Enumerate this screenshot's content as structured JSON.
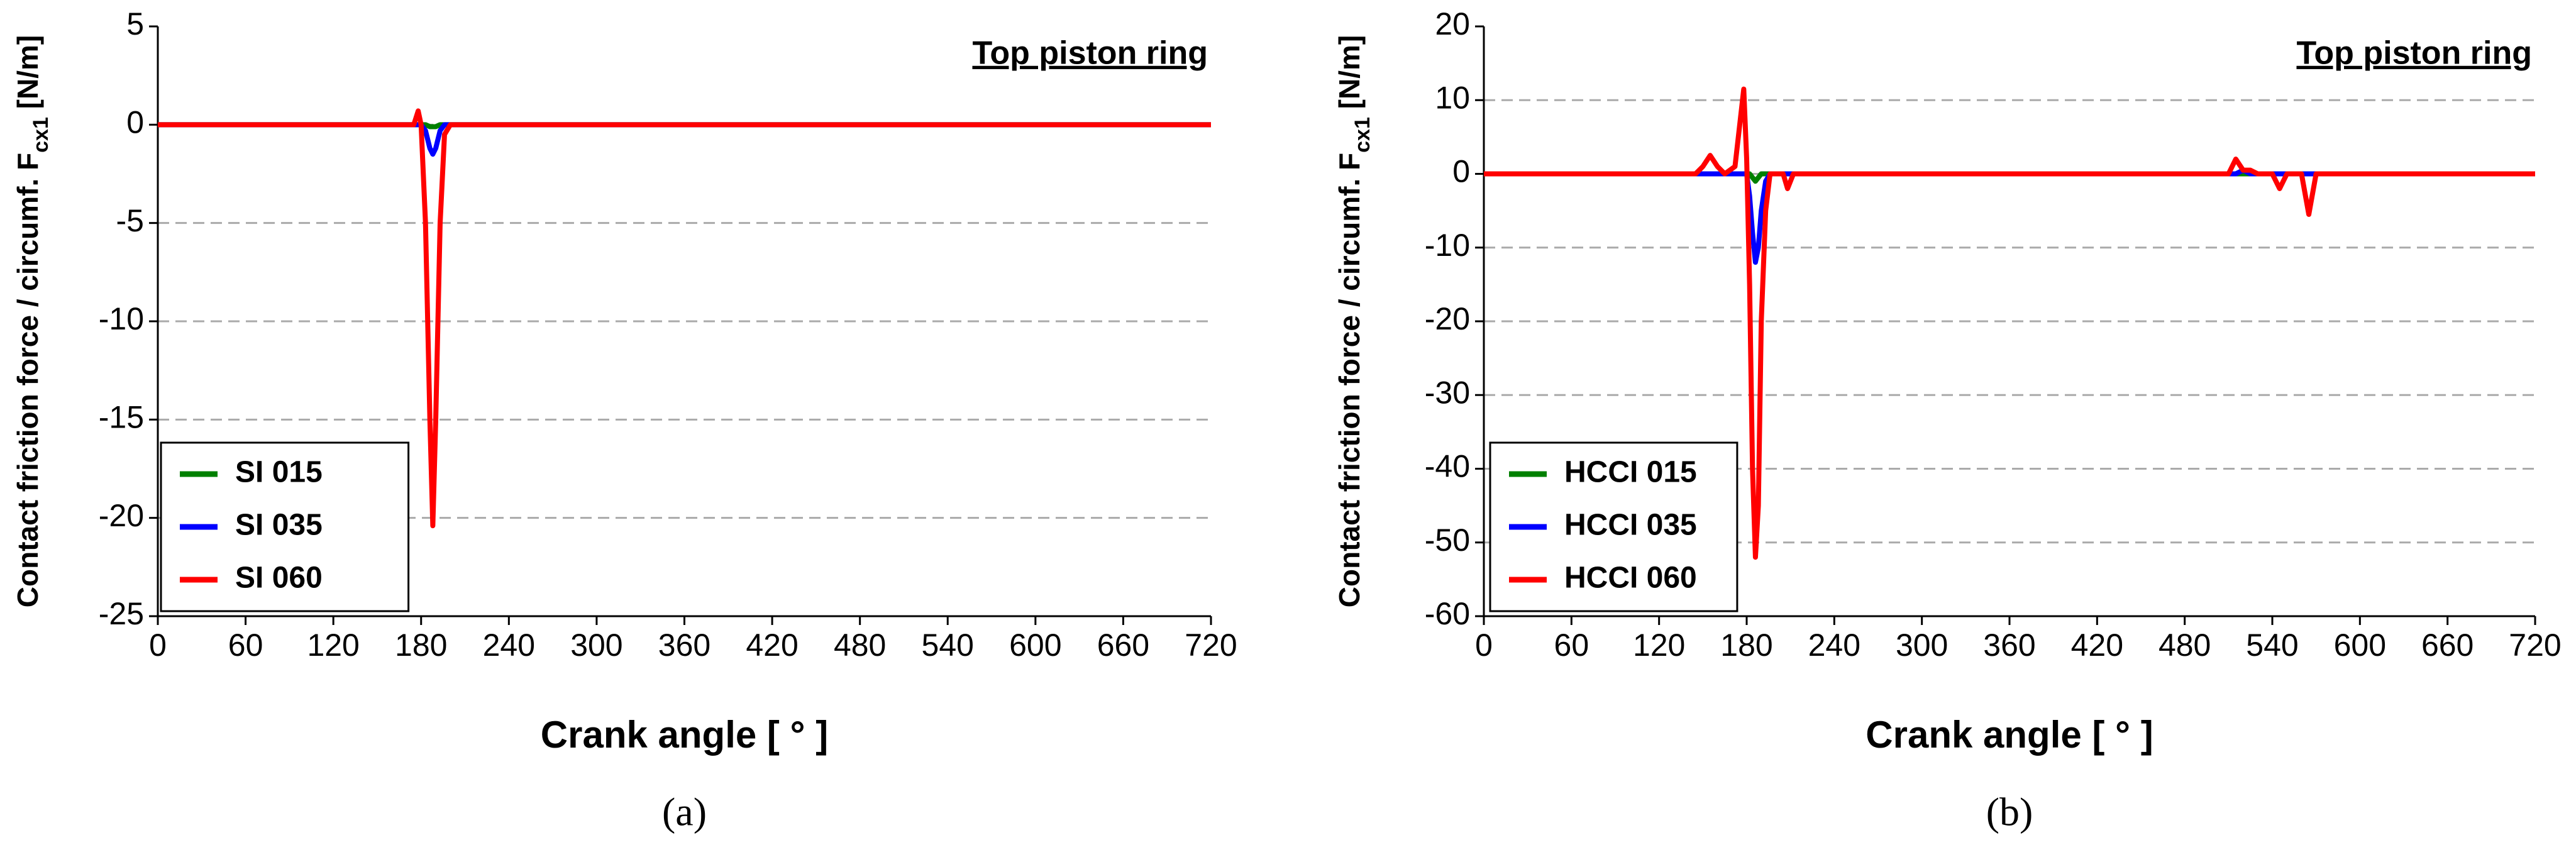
{
  "chart_data": [
    {
      "type": "line",
      "annotation": "Top piston ring",
      "panel_label": "(a)",
      "xlabel": "Crank angle [ ° ]",
      "ylabel": [
        "Contact friction force / circumf. F",
        "cx1",
        " [N/m]"
      ],
      "x": [
        0,
        170,
        175,
        178,
        180,
        183,
        186,
        188,
        190,
        193,
        196,
        200,
        720
      ],
      "series": [
        {
          "name": "SI 015",
          "color": "#008000",
          "values": [
            0,
            0,
            0,
            0,
            0,
            0,
            -0.1,
            -0.1,
            -0.1,
            0,
            0,
            0,
            0
          ]
        },
        {
          "name": "SI 035",
          "color": "#0000ff",
          "values": [
            0,
            0,
            0,
            0,
            0,
            -0.3,
            -1.2,
            -1.5,
            -1.2,
            -0.3,
            0,
            0,
            0
          ]
        },
        {
          "name": "SI 060",
          "color": "#ff0000",
          "values": [
            0,
            0,
            0,
            0.7,
            0,
            -5,
            -15,
            -20.4,
            -15,
            -5,
            -0.5,
            0,
            0
          ]
        }
      ],
      "xlim": [
        0,
        720
      ],
      "xticks": [
        0,
        60,
        120,
        180,
        240,
        300,
        360,
        420,
        480,
        540,
        600,
        660,
        720
      ],
      "ylim": [
        -25,
        5
      ],
      "yticks": [
        5,
        0,
        -5,
        -10,
        -15,
        -20,
        -25
      ],
      "grid": true,
      "legend": "lower left"
    },
    {
      "type": "line",
      "annotation": "Top piston ring",
      "panel_label": "(b)",
      "xlabel": "Crank angle [ ° ]",
      "ylabel": [
        "Contact friction force / circumf. F",
        "cx1",
        " [N/m]"
      ],
      "x": [
        0,
        145,
        150,
        155,
        160,
        165,
        172,
        176,
        178,
        180,
        182,
        184,
        186,
        188,
        190,
        193,
        196,
        200,
        205,
        208,
        212,
        500,
        510,
        515,
        520,
        525,
        530,
        540,
        545,
        550,
        560,
        565,
        570,
        720
      ],
      "series": [
        {
          "name": "HCCI 015",
          "color": "#008000",
          "values": [
            0,
            0,
            0,
            0,
            0,
            0,
            0,
            0,
            0,
            0,
            0,
            -0.5,
            -1,
            -0.5,
            0,
            0,
            0,
            0,
            0,
            0,
            0,
            0,
            0,
            0,
            0,
            0,
            0,
            0,
            0,
            0,
            0,
            0,
            0,
            0
          ]
        },
        {
          "name": "HCCI 035",
          "color": "#0000ff",
          "values": [
            0,
            0,
            0,
            0,
            0,
            0,
            0,
            0,
            0,
            0,
            -3,
            -8,
            -12,
            -10,
            -5,
            -1,
            0,
            0,
            0,
            0,
            0,
            0,
            0,
            0,
            0.5,
            0,
            0,
            0,
            0,
            0,
            0,
            0,
            0,
            0
          ]
        },
        {
          "name": "HCCI 060",
          "color": "#ff0000",
          "values": [
            0,
            0,
            1,
            2.5,
            1,
            0,
            1,
            8,
            11.5,
            2,
            -15,
            -40,
            -52,
            -45,
            -20,
            -5,
            0,
            0,
            0,
            -2,
            0,
            0,
            0,
            2,
            0.5,
            0.5,
            0,
            0,
            -2,
            0,
            0,
            -5.5,
            0,
            0
          ]
        }
      ],
      "xlim": [
        0,
        720
      ],
      "xticks": [
        0,
        60,
        120,
        180,
        240,
        300,
        360,
        420,
        480,
        540,
        600,
        660,
        720
      ],
      "ylim": [
        -60,
        20
      ],
      "yticks": [
        20,
        10,
        0,
        -10,
        -20,
        -30,
        -40,
        -50,
        -60
      ],
      "grid": true,
      "legend": "lower left"
    }
  ]
}
